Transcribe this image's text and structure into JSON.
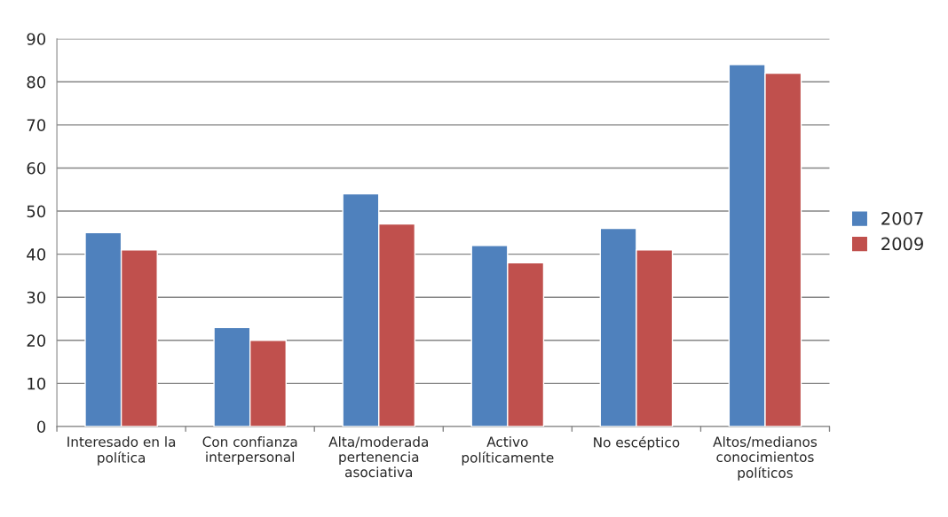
{
  "chart_data": {
    "type": "bar",
    "categories": [
      "Interesado en la\npolítica",
      "Con confianza\ninterpersonal",
      "Alta/moderada\npertenencia\nasociativa",
      "Activo\npolíticamente",
      "No escéptico",
      "Altos/medianos\nconocimientos\npolíticos"
    ],
    "series": [
      {
        "name": "2007",
        "color": "#4f81bd",
        "values": [
          45,
          23,
          54,
          42,
          46,
          84
        ]
      },
      {
        "name": "2009",
        "color": "#c0504d",
        "values": [
          41,
          20,
          47,
          38,
          41,
          82
        ]
      }
    ],
    "ylim": [
      0,
      90
    ],
    "yticks": [
      0,
      10,
      20,
      30,
      40,
      50,
      60,
      70,
      80,
      90
    ],
    "grid": "y",
    "legend": "right"
  }
}
